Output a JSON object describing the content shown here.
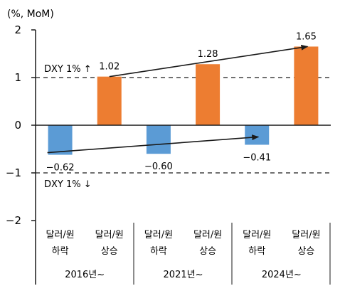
{
  "chart_data": {
    "type": "bar",
    "unit_label": "(%, MoM)",
    "ylim": [
      -2,
      2
    ],
    "yticks": [
      "2",
      "1",
      "0",
      "−1",
      "−2"
    ],
    "ytick_values": [
      2,
      1,
      0,
      -1,
      -2
    ],
    "bars": [
      {
        "line1": "달러/원",
        "line2": "하락",
        "value": -0.62,
        "label": "−0.62",
        "color": "#5b9bd5"
      },
      {
        "line1": "달러/원",
        "line2": "상승",
        "value": 1.02,
        "label": "1.02",
        "color": "#ed7d31"
      },
      {
        "line1": "달러/원",
        "line2": "하락",
        "value": -0.6,
        "label": "−0.60",
        "color": "#5b9bd5"
      },
      {
        "line1": "달러/원",
        "line2": "상승",
        "value": 1.28,
        "label": "1.28",
        "color": "#ed7d31"
      },
      {
        "line1": "달러/원",
        "line2": "하락",
        "value": -0.41,
        "label": "−0.41",
        "color": "#5b9bd5"
      },
      {
        "line1": "달러/원",
        "line2": "상승",
        "value": 1.65,
        "label": "1.65",
        "color": "#ed7d31"
      }
    ],
    "groups": [
      "2016년~",
      "2021년~",
      "2024년~"
    ],
    "reference_lines": [
      {
        "value": 1,
        "label": "DXY 1% ↑"
      },
      {
        "value": -1,
        "label": "DXY 1% ↓"
      }
    ],
    "trend_arrows": [
      {
        "name": "하락 trend",
        "from_bar": 0,
        "to_bar": 4
      },
      {
        "name": "상승 trend",
        "from_bar": 1,
        "to_bar": 5
      }
    ],
    "grid": false,
    "legend": "none"
  }
}
